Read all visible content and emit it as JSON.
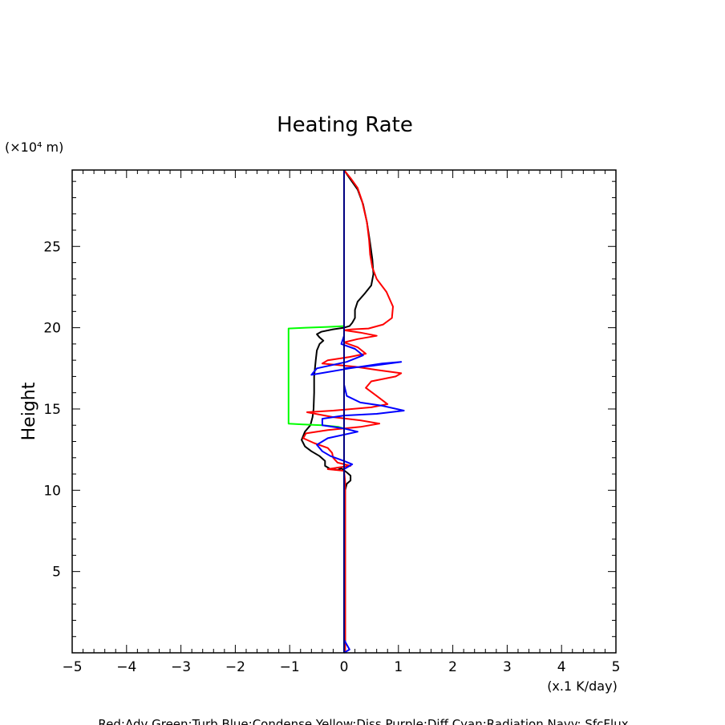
{
  "chart_data": {
    "type": "line",
    "title": "Heating Rate",
    "ylabel": "Height",
    "y_unit_label": "(×10⁴ m)",
    "x_unit_label": "(x.1 K/day)",
    "xlim": [
      -5,
      5
    ],
    "ylim": [
      0,
      29.7
    ],
    "x_ticks": [
      "−5",
      "−4",
      "−3",
      "−2",
      "−1",
      "0",
      "1",
      "2",
      "3",
      "4",
      "5"
    ],
    "y_ticks": [
      "5",
      "10",
      "15",
      "20",
      "25"
    ],
    "legend_text": "Red:Adv  Green:Turb  Blue:Condense  Yellow:Diss  Purple:Diff  Cyan:Radiation  Navy: SfcFlux",
    "series": [
      {
        "color": "#000000",
        "points": [
          [
            0,
            29.7
          ],
          [
            0.1,
            29.2
          ],
          [
            0.25,
            28.5
          ],
          [
            0.35,
            27.6
          ],
          [
            0.42,
            26.5
          ],
          [
            0.48,
            25.2
          ],
          [
            0.52,
            24.2
          ],
          [
            0.54,
            23.3
          ],
          [
            0.5,
            22.6
          ],
          [
            0.38,
            22.1
          ],
          [
            0.25,
            21.6
          ],
          [
            0.2,
            21.1
          ],
          [
            0.2,
            20.6
          ],
          [
            0.15,
            20.3
          ],
          [
            0.1,
            20.1
          ],
          [
            0,
            20.0
          ],
          [
            -0.2,
            19.9
          ],
          [
            -0.42,
            19.75
          ],
          [
            -0.5,
            19.6
          ],
          [
            -0.45,
            19.4
          ],
          [
            -0.38,
            19.2
          ],
          [
            -0.45,
            19.0
          ],
          [
            -0.5,
            18.6
          ],
          [
            -0.52,
            18.0
          ],
          [
            -0.55,
            17.0
          ],
          [
            -0.55,
            16.0
          ],
          [
            -0.56,
            15.0
          ],
          [
            -0.58,
            14.5
          ],
          [
            -0.62,
            14.0
          ],
          [
            -0.72,
            13.6
          ],
          [
            -0.78,
            13.1
          ],
          [
            -0.72,
            12.7
          ],
          [
            -0.6,
            12.4
          ],
          [
            -0.45,
            12.1
          ],
          [
            -0.35,
            11.8
          ],
          [
            -0.35,
            11.5
          ],
          [
            -0.25,
            11.3
          ],
          [
            -0.12,
            11.25
          ],
          [
            -0.05,
            11.35
          ],
          [
            0.05,
            11.1
          ],
          [
            0.12,
            10.9
          ],
          [
            0.12,
            10.6
          ],
          [
            0.05,
            10.4
          ],
          [
            0.02,
            10.0
          ],
          [
            0.02,
            9.5
          ],
          [
            0.02,
            5
          ],
          [
            0.02,
            0.5
          ],
          [
            0,
            0
          ]
        ]
      },
      {
        "color": "#ff0000",
        "points": [
          [
            0,
            29.7
          ],
          [
            0.12,
            29.2
          ],
          [
            0.25,
            28.6
          ],
          [
            0.33,
            27.8
          ],
          [
            0.42,
            26.5
          ],
          [
            0.46,
            25.4
          ],
          [
            0.48,
            24.5
          ],
          [
            0.52,
            23.7
          ],
          [
            0.6,
            23.0
          ],
          [
            0.78,
            22.2
          ],
          [
            0.9,
            21.3
          ],
          [
            0.88,
            20.6
          ],
          [
            0.72,
            20.2
          ],
          [
            0.45,
            19.95
          ],
          [
            0.15,
            19.9
          ],
          [
            0,
            19.85
          ],
          [
            0.3,
            19.7
          ],
          [
            0.6,
            19.5
          ],
          [
            0.25,
            19.3
          ],
          [
            0.0,
            19.1
          ],
          [
            0.25,
            18.8
          ],
          [
            0.4,
            18.4
          ],
          [
            0.1,
            18.2
          ],
          [
            -0.3,
            18.0
          ],
          [
            -0.4,
            17.8
          ],
          [
            0.2,
            17.6
          ],
          [
            0.6,
            17.4
          ],
          [
            1.05,
            17.2
          ],
          [
            0.95,
            17.0
          ],
          [
            0.5,
            16.7
          ],
          [
            0.4,
            16.3
          ],
          [
            0.6,
            15.8
          ],
          [
            0.8,
            15.3
          ],
          [
            0.5,
            15.1
          ],
          [
            -0.2,
            14.9
          ],
          [
            -0.68,
            14.8
          ],
          [
            -0.2,
            14.5
          ],
          [
            0.3,
            14.3
          ],
          [
            0.65,
            14.1
          ],
          [
            0.3,
            13.9
          ],
          [
            -0.3,
            13.7
          ],
          [
            -0.7,
            13.5
          ],
          [
            -0.75,
            13.2
          ],
          [
            -0.55,
            12.9
          ],
          [
            -0.3,
            12.6
          ],
          [
            -0.22,
            12.3
          ],
          [
            -0.2,
            12.0
          ],
          [
            -0.12,
            11.7
          ],
          [
            0.12,
            11.5
          ],
          [
            -0.1,
            11.4
          ],
          [
            -0.3,
            11.3
          ],
          [
            0.0,
            11.2
          ],
          [
            0.02,
            10.5
          ],
          [
            0.02,
            5
          ],
          [
            0.02,
            0
          ]
        ]
      },
      {
        "color": "#00ff00",
        "points": [
          [
            0,
            20.1
          ],
          [
            -0.3,
            20.05
          ],
          [
            -0.7,
            20.0
          ],
          [
            -1.02,
            19.95
          ],
          [
            -1.02,
            14.1
          ],
          [
            -0.75,
            14.05
          ],
          [
            -0.4,
            14.0
          ],
          [
            -0.1,
            13.9
          ],
          [
            0,
            13.8
          ]
        ]
      },
      {
        "color": "#0000ff",
        "points": [
          [
            0,
            20.0
          ],
          [
            0,
            19.5
          ],
          [
            -0.05,
            19.0
          ],
          [
            0.2,
            18.7
          ],
          [
            0.35,
            18.3
          ],
          [
            0.05,
            17.9
          ],
          [
            -0.5,
            17.5
          ],
          [
            -0.6,
            17.1
          ],
          [
            0.1,
            17.5
          ],
          [
            0.7,
            17.8
          ],
          [
            1.05,
            17.9
          ],
          [
            0.5,
            17.65
          ],
          [
            0.0,
            17.5
          ],
          [
            0.0,
            16.5
          ],
          [
            0.05,
            15.8
          ],
          [
            0.3,
            15.4
          ],
          [
            0.7,
            15.2
          ],
          [
            1.1,
            14.9
          ],
          [
            0.6,
            14.7
          ],
          [
            0.0,
            14.6
          ],
          [
            -0.4,
            14.4
          ],
          [
            -0.4,
            14.0
          ],
          [
            0.0,
            13.8
          ],
          [
            0.25,
            13.6
          ],
          [
            -0.3,
            13.2
          ],
          [
            -0.5,
            12.8
          ],
          [
            -0.4,
            12.4
          ],
          [
            -0.25,
            12.1
          ],
          [
            0.0,
            11.8
          ],
          [
            0.15,
            11.6
          ],
          [
            0.0,
            11.3
          ],
          [
            0.0,
            5
          ],
          [
            0.0,
            0.8
          ],
          [
            0.1,
            0.2
          ],
          [
            0,
            0
          ]
        ]
      },
      {
        "color": "#000080",
        "points": [
          [
            0,
            29.7
          ],
          [
            0,
            0
          ]
        ]
      }
    ]
  }
}
